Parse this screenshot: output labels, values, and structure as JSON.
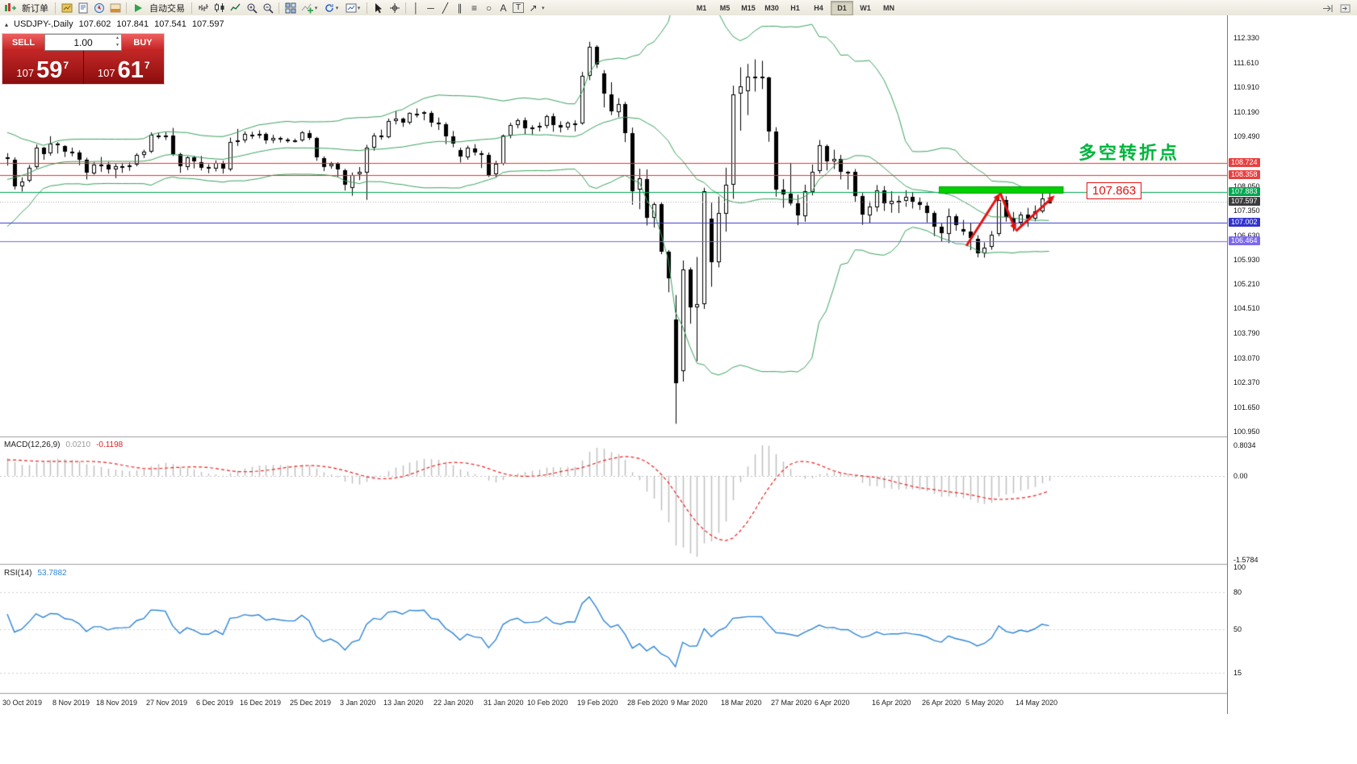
{
  "toolbar": {
    "new_order_label": "新订单",
    "autotrading_label": "自动交易",
    "timeframes": [
      "M1",
      "M5",
      "M15",
      "M30",
      "H1",
      "H4",
      "D1",
      "W1",
      "MN"
    ],
    "active_timeframe": "D1"
  },
  "icons": {
    "dropdown": "▾",
    "vertical_line": "│",
    "horizontal_line": "─",
    "trendline": "╱",
    "channel": "∥",
    "fibonacci": "≡",
    "ellipse": "○",
    "text": "A",
    "text_label": "T",
    "arrows": "↗",
    "collapse": "▴",
    "vol_up": "▲",
    "vol_down": "▼"
  },
  "symbol_header": {
    "symbol": "USDJPY-,Daily",
    "open": "107.602",
    "high": "107.841",
    "low": "107.541",
    "close": "107.597"
  },
  "one_click_trading": {
    "sell_label": "SELL",
    "buy_label": "BUY",
    "volume": "1.00",
    "sell_price": {
      "prefix": "107",
      "big": "59",
      "sup": "7"
    },
    "buy_price": {
      "prefix": "107",
      "big": "61",
      "sup": "7"
    }
  },
  "annotations": {
    "turning_point_text": "多空转折点",
    "turning_point_color": "#00b43c",
    "price_callout": "107.863",
    "price_callout_color": "#e01212"
  },
  "price_axis": {
    "ticks": [
      "112.330",
      "111.610",
      "110.910",
      "110.190",
      "109.490",
      "108.050",
      "107.350",
      "106.630",
      "105.930",
      "105.210",
      "104.510",
      "103.790",
      "103.070",
      "102.370",
      "101.650",
      "100.950"
    ],
    "tags": [
      {
        "value": "108.724",
        "color": "#e84040"
      },
      {
        "value": "108.358",
        "color": "#e84040"
      },
      {
        "value": "107.883",
        "color": "#00a651"
      },
      {
        "value": "107.597",
        "color": "#3c3c3c"
      },
      {
        "value": "107.002",
        "color": "#3333cc"
      },
      {
        "value": "106.464",
        "color": "#7b68ee"
      }
    ]
  },
  "macd_panel": {
    "name": "MACD(12,26,9)",
    "main_value": "0.0210",
    "signal_value": "-0.1198",
    "axis_labels": [
      "0.8034",
      "0.00",
      "-1.5784"
    ]
  },
  "rsi_panel": {
    "name": "RSI(14)",
    "value": "53.7882",
    "axis_labels": [
      "100",
      "80",
      "50",
      "15"
    ]
  },
  "date_axis": [
    {
      "label": "30 Oct 2019",
      "index": 0
    },
    {
      "label": "8 Nov 2019",
      "index": 7
    },
    {
      "label": "18 Nov 2019",
      "index": 13
    },
    {
      "label": "27 Nov 2019",
      "index": 20
    },
    {
      "label": "6 Dec 2019",
      "index": 27
    },
    {
      "label": "16 Dec 2019",
      "index": 33
    },
    {
      "label": "25 Dec 2019",
      "index": 40
    },
    {
      "label": "3 Jan 2020",
      "index": 47
    },
    {
      "label": "13 Jan 2020",
      "index": 53
    },
    {
      "label": "22 Jan 2020",
      "index": 60
    },
    {
      "label": "31 Jan 2020",
      "index": 67
    },
    {
      "label": "10 Feb 2020",
      "index": 73
    },
    {
      "label": "19 Feb 2020",
      "index": 80
    },
    {
      "label": "28 Feb 2020",
      "index": 87
    },
    {
      "label": "9 Mar 2020",
      "index": 93
    },
    {
      "label": "18 Mar 2020",
      "index": 100
    },
    {
      "label": "27 Mar 2020",
      "index": 107
    },
    {
      "label": "6 Apr 2020",
      "index": 113
    },
    {
      "label": "16 Apr 2020",
      "index": 121
    },
    {
      "label": "26 Apr 2020",
      "index": 128
    },
    {
      "label": "5 May 2020",
      "index": 134
    },
    {
      "label": "14 May 2020",
      "index": 141
    }
  ],
  "chart_data": {
    "type": "candlestick",
    "symbol": "USDJPY",
    "timeframe": "D1",
    "price_range": [
      100.86,
      112.89
    ],
    "ohlc": [
      [
        108.88,
        109.0,
        108.64,
        108.83
      ],
      [
        108.82,
        108.88,
        107.95,
        108.03
      ],
      [
        108.05,
        108.3,
        107.89,
        108.18
      ],
      [
        108.2,
        108.66,
        108.16,
        108.58
      ],
      [
        108.6,
        109.25,
        108.55,
        109.16
      ],
      [
        109.15,
        109.18,
        108.81,
        108.98
      ],
      [
        108.99,
        109.49,
        108.93,
        109.28
      ],
      [
        109.28,
        109.32,
        108.99,
        109.26
      ],
      [
        109.2,
        109.23,
        108.89,
        109.05
      ],
      [
        109.04,
        109.16,
        108.91,
        109.0
      ],
      [
        109.01,
        109.08,
        108.65,
        108.82
      ],
      [
        108.81,
        108.87,
        108.24,
        108.43
      ],
      [
        108.42,
        108.74,
        108.38,
        108.68
      ],
      [
        108.67,
        108.89,
        108.46,
        108.68
      ],
      [
        108.67,
        108.75,
        108.41,
        108.53
      ],
      [
        108.52,
        108.69,
        108.28,
        108.62
      ],
      [
        108.61,
        108.72,
        108.43,
        108.63
      ],
      [
        108.62,
        108.73,
        108.49,
        108.65
      ],
      [
        108.66,
        109.0,
        108.62,
        108.95
      ],
      [
        108.96,
        109.1,
        108.86,
        109.05
      ],
      [
        109.04,
        109.6,
        109.0,
        109.53
      ],
      [
        109.52,
        109.59,
        109.41,
        109.52
      ],
      [
        109.51,
        109.61,
        109.38,
        109.49
      ],
      [
        109.5,
        109.73,
        108.92,
        108.98
      ],
      [
        108.97,
        109.01,
        108.43,
        108.62
      ],
      [
        108.61,
        108.91,
        108.51,
        108.88
      ],
      [
        108.87,
        108.92,
        108.56,
        108.76
      ],
      [
        108.75,
        108.92,
        108.5,
        108.58
      ],
      [
        108.59,
        108.68,
        108.42,
        108.57
      ],
      [
        108.56,
        108.79,
        108.47,
        108.72
      ],
      [
        108.71,
        108.78,
        108.41,
        108.55
      ],
      [
        108.54,
        109.45,
        108.48,
        109.33
      ],
      [
        109.32,
        109.7,
        109.21,
        109.38
      ],
      [
        109.37,
        109.63,
        109.3,
        109.55
      ],
      [
        109.54,
        109.62,
        109.41,
        109.51
      ],
      [
        109.5,
        109.66,
        109.43,
        109.56
      ],
      [
        109.55,
        109.6,
        109.27,
        109.37
      ],
      [
        109.36,
        109.53,
        109.29,
        109.44
      ],
      [
        109.43,
        109.48,
        109.31,
        109.4
      ],
      [
        109.39,
        109.44,
        109.3,
        109.37
      ],
      [
        109.37,
        109.42,
        109.31,
        109.37
      ],
      [
        109.36,
        109.64,
        109.33,
        109.6
      ],
      [
        109.59,
        109.66,
        109.38,
        109.44
      ],
      [
        109.43,
        109.47,
        108.78,
        108.87
      ],
      [
        108.86,
        108.91,
        108.48,
        108.61
      ],
      [
        108.62,
        108.75,
        108.55,
        108.7
      ],
      [
        108.71,
        108.74,
        108.31,
        108.52
      ],
      [
        108.51,
        108.55,
        107.92,
        108.09
      ],
      [
        108.0,
        108.44,
        107.77,
        108.37
      ],
      [
        108.38,
        108.6,
        108.22,
        108.45
      ],
      [
        108.44,
        109.24,
        107.65,
        109.15
      ],
      [
        109.16,
        109.58,
        109.07,
        109.51
      ],
      [
        109.52,
        109.68,
        109.39,
        109.46
      ],
      [
        109.47,
        110.0,
        109.43,
        109.94
      ],
      [
        109.93,
        110.21,
        109.83,
        110.0
      ],
      [
        109.99,
        110.03,
        109.76,
        109.89
      ],
      [
        109.88,
        110.18,
        109.83,
        110.16
      ],
      [
        110.15,
        110.29,
        110.03,
        110.14
      ],
      [
        110.13,
        110.22,
        109.95,
        110.18
      ],
      [
        110.17,
        110.22,
        109.76,
        109.89
      ],
      [
        109.88,
        110.03,
        109.67,
        109.84
      ],
      [
        109.83,
        109.89,
        109.26,
        109.49
      ],
      [
        109.48,
        109.64,
        109.17,
        109.27
      ],
      [
        109.1,
        109.16,
        108.73,
        108.9
      ],
      [
        108.89,
        109.22,
        108.81,
        109.15
      ],
      [
        109.14,
        109.26,
        108.93,
        109.01
      ],
      [
        109.0,
        109.07,
        108.57,
        108.96
      ],
      [
        108.95,
        109.02,
        108.31,
        108.35
      ],
      [
        108.38,
        108.78,
        108.3,
        108.69
      ],
      [
        108.7,
        109.54,
        108.65,
        109.52
      ],
      [
        109.51,
        109.88,
        109.43,
        109.82
      ],
      [
        109.81,
        110.0,
        109.72,
        109.96
      ],
      [
        109.95,
        110.03,
        109.55,
        109.73
      ],
      [
        109.72,
        109.81,
        109.53,
        109.75
      ],
      [
        109.74,
        109.89,
        109.63,
        109.79
      ],
      [
        109.78,
        110.11,
        109.72,
        110.08
      ],
      [
        110.07,
        110.15,
        109.62,
        109.82
      ],
      [
        109.81,
        109.92,
        109.6,
        109.75
      ],
      [
        109.74,
        109.92,
        109.67,
        109.88
      ],
      [
        109.87,
        109.95,
        109.63,
        109.87
      ],
      [
        109.86,
        111.35,
        109.82,
        111.23
      ],
      [
        111.24,
        112.22,
        111.11,
        112.08
      ],
      [
        112.07,
        112.12,
        111.46,
        111.55
      ],
      [
        111.3,
        111.4,
        110.32,
        110.72
      ],
      [
        110.71,
        111.05,
        110.1,
        110.2
      ],
      [
        110.19,
        110.59,
        110.04,
        110.43
      ],
      [
        110.42,
        110.48,
        109.32,
        109.59
      ],
      [
        109.58,
        109.74,
        107.51,
        107.89
      ],
      [
        107.95,
        108.55,
        107.38,
        108.27
      ],
      [
        108.26,
        108.53,
        106.91,
        107.13
      ],
      [
        107.12,
        107.6,
        106.85,
        107.53
      ],
      [
        107.52,
        107.58,
        106.08,
        106.16
      ],
      [
        106.15,
        106.2,
        104.98,
        105.39
      ],
      [
        104.2,
        104.9,
        101.18,
        102.36
      ],
      [
        102.7,
        105.9,
        102.4,
        105.64
      ],
      [
        105.63,
        105.7,
        104.07,
        104.55
      ],
      [
        104.54,
        106.0,
        102.99,
        104.63
      ],
      [
        104.64,
        108.0,
        104.5,
        107.9
      ],
      [
        107.1,
        107.57,
        105.14,
        105.85
      ],
      [
        105.86,
        107.75,
        105.7,
        107.26
      ],
      [
        107.25,
        108.58,
        106.73,
        108.08
      ],
      [
        108.09,
        110.95,
        107.68,
        110.71
      ],
      [
        110.72,
        111.48,
        109.65,
        110.93
      ],
      [
        110.8,
        111.58,
        110.1,
        111.22
      ],
      [
        111.21,
        111.71,
        110.78,
        111.22
      ],
      [
        111.21,
        111.67,
        110.85,
        111.19
      ],
      [
        111.18,
        111.21,
        109.33,
        109.63
      ],
      [
        109.62,
        109.75,
        107.74,
        107.94
      ],
      [
        107.95,
        108.25,
        107.42,
        107.81
      ],
      [
        107.82,
        108.72,
        107.49,
        107.54
      ],
      [
        107.55,
        107.8,
        106.92,
        107.19
      ],
      [
        107.18,
        108.09,
        107.02,
        107.89
      ],
      [
        107.88,
        108.67,
        107.78,
        108.47
      ],
      [
        108.48,
        109.38,
        108.41,
        109.22
      ],
      [
        109.21,
        109.25,
        108.5,
        108.76
      ],
      [
        108.77,
        109.1,
        108.54,
        108.84
      ],
      [
        108.83,
        108.95,
        108.24,
        108.45
      ],
      [
        108.44,
        108.49,
        107.95,
        108.47
      ],
      [
        108.46,
        108.54,
        107.58,
        107.77
      ],
      [
        107.76,
        107.85,
        106.93,
        107.22
      ],
      [
        107.21,
        107.61,
        106.99,
        107.45
      ],
      [
        107.44,
        108.08,
        107.31,
        107.93
      ],
      [
        107.92,
        108.05,
        107.33,
        107.54
      ],
      [
        107.53,
        107.9,
        107.28,
        107.63
      ],
      [
        107.62,
        107.77,
        107.27,
        107.62
      ],
      [
        107.61,
        107.93,
        107.45,
        107.74
      ],
      [
        107.73,
        107.88,
        107.4,
        107.6
      ],
      [
        107.59,
        107.72,
        107.36,
        107.5
      ],
      [
        107.49,
        107.58,
        107.0,
        107.28
      ],
      [
        107.27,
        107.33,
        106.6,
        106.88
      ],
      [
        106.87,
        106.98,
        106.45,
        106.68
      ],
      [
        106.67,
        107.4,
        106.4,
        107.18
      ],
      [
        107.17,
        107.24,
        106.76,
        106.91
      ],
      [
        106.8,
        107.07,
        106.63,
        106.74
      ],
      [
        106.73,
        106.97,
        106.2,
        106.54
      ],
      [
        106.53,
        106.63,
        105.99,
        106.11
      ],
      [
        106.1,
        106.42,
        105.98,
        106.28
      ],
      [
        106.29,
        106.75,
        106.21,
        106.65
      ],
      [
        106.66,
        107.77,
        106.6,
        107.65
      ],
      [
        107.64,
        107.76,
        107.02,
        107.15
      ],
      [
        107.14,
        107.3,
        106.74,
        106.99
      ],
      [
        106.98,
        107.3,
        106.86,
        107.23
      ],
      [
        107.22,
        107.42,
        106.87,
        107.1
      ],
      [
        107.11,
        107.49,
        107.03,
        107.32
      ],
      [
        107.31,
        108.01,
        107.27,
        107.7
      ],
      [
        107.602,
        107.841,
        107.541,
        107.597
      ]
    ],
    "warmup_closes": [
      107.74,
      107.17,
      106.96,
      106.94,
      107.26,
      107.08,
      107.47,
      107.93,
      108.29,
      108.38,
      108.86,
      108.76,
      108.66,
      108.45,
      108.62,
      108.48,
      108.67,
      108.63,
      108.67,
      108.96,
      108.88
    ],
    "indicators": {
      "bollinger": {
        "period": 20,
        "deviation": 2,
        "color": "#3aa35e"
      },
      "macd": {
        "fast": 12,
        "slow": 26,
        "signal_period": 9,
        "histogram_color": "#bdbdbd",
        "signal_color": "#ee2020"
      },
      "rsi": {
        "period": 14,
        "color": "#2f86d6",
        "levels": [
          80,
          50,
          15
        ]
      }
    },
    "hlines": [
      {
        "price": 108.724,
        "color": "#f03030",
        "style": "solid"
      },
      {
        "price": 108.358,
        "color": "#f03030",
        "style": "solid"
      },
      {
        "price": 107.883,
        "color": "#00a651",
        "style": "solid"
      },
      {
        "price": 107.002,
        "color": "#3333cc",
        "style": "solid"
      },
      {
        "price": 106.464,
        "color": "#7b68ee",
        "style": "solid"
      },
      {
        "price": 107.597,
        "color": "#aaaaaa",
        "style": "dot"
      }
    ],
    "zone": {
      "start_index": 130,
      "end_index": 147,
      "top_price": 108.04,
      "bottom_price": 107.82,
      "color": "#00cf00",
      "border": "#00a000"
    },
    "arrows": {
      "color": "#e01212",
      "segments": [
        [
          133.5,
          106.32,
          138.2,
          107.85
        ],
        [
          138.2,
          107.85,
          140.4,
          106.75
        ],
        [
          140.4,
          106.75,
          145.8,
          107.78
        ]
      ]
    }
  }
}
